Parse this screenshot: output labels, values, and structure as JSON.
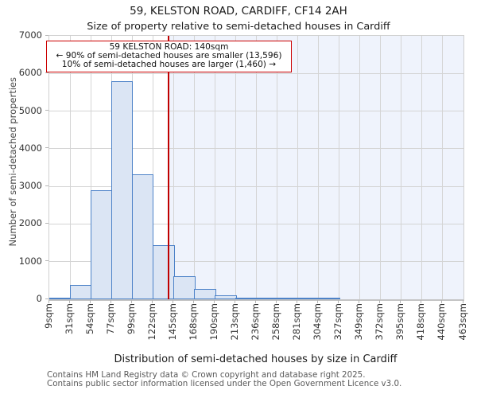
{
  "page": {
    "title": "59, KELSTON ROAD, CARDIFF, CF14 2AH",
    "subtitle": "Size of property relative to semi-detached houses in Cardiff"
  },
  "annotation": {
    "line1": "59 KELSTON ROAD: 140sqm",
    "line2": "← 90% of semi-detached houses are smaller (13,596)",
    "line3": "10% of semi-detached houses are larger (1,460) →"
  },
  "footer": {
    "line1": "Contains HM Land Registry data © Crown copyright and database right 2025.",
    "line2": "Contains public sector information licensed under the Open Government Licence v3.0."
  },
  "chart_data": {
    "type": "bar",
    "title": "59, KELSTON ROAD, CARDIFF, CF14 2AH",
    "subtitle": "Size of property relative to semi-detached houses in Cardiff",
    "xlabel": "Distribution of semi-detached houses by size in Cardiff",
    "ylabel": "Number of semi-detached properties",
    "x_tick_labels": [
      "9sqm",
      "31sqm",
      "54sqm",
      "77sqm",
      "99sqm",
      "122sqm",
      "145sqm",
      "168sqm",
      "190sqm",
      "213sqm",
      "236sqm",
      "258sqm",
      "281sqm",
      "304sqm",
      "327sqm",
      "349sqm",
      "372sqm",
      "395sqm",
      "418sqm",
      "440sqm",
      "463sqm"
    ],
    "bin_edges_sqm": [
      9,
      31,
      54,
      77,
      99,
      122,
      145,
      168,
      190,
      213,
      236,
      258,
      281,
      304,
      327,
      349,
      372,
      395,
      418,
      440,
      463
    ],
    "values": [
      30,
      390,
      2900,
      5800,
      3310,
      1430,
      620,
      280,
      110,
      45,
      20,
      10,
      8,
      8,
      0,
      0,
      0,
      0,
      0,
      0
    ],
    "ylim": [
      0,
      7000
    ],
    "y_ticks": [
      0,
      1000,
      2000,
      3000,
      4000,
      5000,
      6000,
      7000
    ],
    "grid": true,
    "legend": "none",
    "marker_sqm": 140,
    "marker_label": "140sqm",
    "shaded_region": "right-of-marker",
    "smaller_count": "13,596",
    "larger_count": "1,460",
    "smaller_pct": "90%",
    "larger_pct": "10%",
    "colors": {
      "bar_fill": "#dbe5f4",
      "bar_edge": "#4d82c8",
      "marker_line": "#c00000",
      "annotation_border": "#cc0000",
      "shade": "#eff3fc",
      "gridline": "#d4d4d4"
    }
  }
}
